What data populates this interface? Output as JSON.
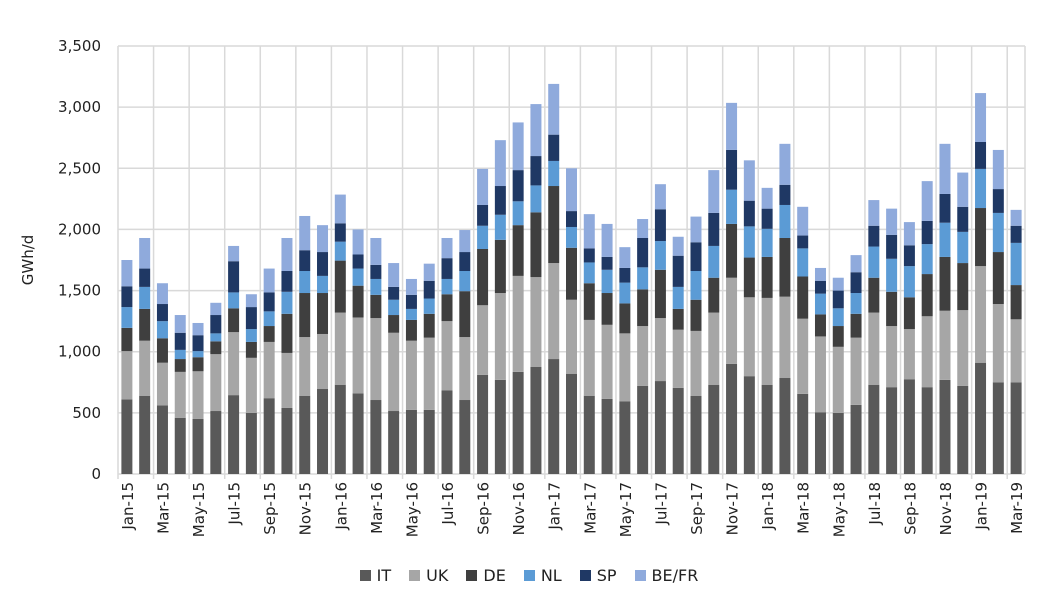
{
  "chart_data": {
    "type": "bar",
    "stacked": true,
    "title": "",
    "xlabel": "",
    "ylabel": "GWh/d",
    "ylim": [
      0,
      3500
    ],
    "yticks": [
      0,
      500,
      1000,
      1500,
      2000,
      2500,
      3000,
      3500
    ],
    "ytick_labels": [
      "0",
      "500",
      "1,000",
      "1,500",
      "2,000",
      "2,500",
      "3,000",
      "3,500"
    ],
    "grid": true,
    "legend_position": "bottom",
    "categories": [
      "Jan-15",
      "Feb-15",
      "Mar-15",
      "Apr-15",
      "May-15",
      "Jun-15",
      "Jul-15",
      "Aug-15",
      "Sep-15",
      "Oct-15",
      "Nov-15",
      "Dec-15",
      "Jan-16",
      "Feb-16",
      "Mar-16",
      "Apr-16",
      "May-16",
      "Jun-16",
      "Jul-16",
      "Aug-16",
      "Sep-16",
      "Oct-16",
      "Nov-16",
      "Dec-16",
      "Jan-17",
      "Feb-17",
      "Mar-17",
      "Apr-17",
      "May-17",
      "Jun-17",
      "Jul-17",
      "Aug-17",
      "Sep-17",
      "Oct-17",
      "Nov-17",
      "Dec-17",
      "Jan-18",
      "Feb-18",
      "Mar-18",
      "Apr-18",
      "May-18",
      "Jun-18",
      "Jul-18",
      "Aug-18",
      "Sep-18",
      "Oct-18",
      "Nov-18",
      "Dec-18",
      "Jan-19",
      "Feb-19",
      "Mar-19"
    ],
    "series": [
      {
        "name": "IT",
        "color": "#595959",
        "values": [
          610,
          640,
          560,
          460,
          450,
          515,
          645,
          500,
          620,
          540,
          640,
          695,
          730,
          660,
          605,
          515,
          525,
          525,
          685,
          605,
          810,
          770,
          835,
          875,
          940,
          820,
          640,
          615,
          595,
          720,
          760,
          705,
          640,
          730,
          900,
          800,
          730,
          785,
          655,
          505,
          500,
          565,
          730,
          710,
          775,
          710,
          770,
          720,
          910,
          750,
          750
        ]
      },
      {
        "name": "UK",
        "color": "#a6a6a6",
        "values": [
          395,
          450,
          350,
          375,
          390,
          465,
          515,
          450,
          460,
          450,
          480,
          450,
          590,
          620,
          670,
          640,
          565,
          590,
          565,
          515,
          570,
          710,
          785,
          735,
          785,
          605,
          620,
          605,
          555,
          490,
          515,
          475,
          530,
          590,
          705,
          645,
          710,
          665,
          615,
          620,
          540,
          550,
          590,
          500,
          410,
          580,
          565,
          620,
          790,
          640,
          515
        ]
      },
      {
        "name": "DE",
        "color": "#3f3f3f",
        "values": [
          190,
          260,
          200,
          105,
          115,
          105,
          195,
          130,
          130,
          320,
          360,
          335,
          425,
          260,
          190,
          145,
          170,
          195,
          220,
          375,
          460,
          435,
          415,
          530,
          630,
          425,
          300,
          260,
          245,
          300,
          395,
          170,
          255,
          285,
          440,
          325,
          335,
          480,
          345,
          180,
          170,
          195,
          285,
          280,
          260,
          345,
          440,
          385,
          475,
          425,
          280
        ]
      },
      {
        "name": "NL",
        "color": "#5b9bd5",
        "values": [
          170,
          180,
          140,
          75,
          50,
          65,
          130,
          105,
          120,
          180,
          180,
          140,
          155,
          140,
          130,
          125,
          90,
          125,
          125,
          165,
          190,
          205,
          195,
          220,
          205,
          170,
          170,
          190,
          170,
          180,
          235,
          180,
          235,
          260,
          280,
          255,
          230,
          270,
          230,
          170,
          145,
          170,
          255,
          270,
          255,
          245,
          280,
          255,
          320,
          320,
          345
        ]
      },
      {
        "name": "SP",
        "color": "#1f3864",
        "values": [
          170,
          150,
          140,
          140,
          130,
          150,
          255,
          180,
          155,
          170,
          170,
          195,
          150,
          115,
          115,
          105,
          115,
          145,
          170,
          155,
          170,
          235,
          255,
          240,
          215,
          130,
          115,
          105,
          120,
          240,
          260,
          255,
          235,
          270,
          325,
          210,
          165,
          165,
          105,
          105,
          145,
          170,
          170,
          195,
          170,
          190,
          235,
          205,
          220,
          195,
          140
        ]
      },
      {
        "name": "BE/FR",
        "color": "#8faadc",
        "values": [
          215,
          250,
          170,
          145,
          100,
          100,
          125,
          105,
          195,
          270,
          280,
          220,
          235,
          205,
          220,
          195,
          130,
          140,
          165,
          180,
          295,
          375,
          390,
          425,
          415,
          350,
          280,
          270,
          170,
          155,
          205,
          155,
          210,
          350,
          385,
          330,
          170,
          335,
          235,
          105,
          105,
          140,
          210,
          215,
          190,
          325,
          410,
          280,
          400,
          320,
          130
        ]
      }
    ]
  },
  "legend": [
    "IT",
    "UK",
    "DE",
    "NL",
    "SP",
    "BE/FR"
  ]
}
